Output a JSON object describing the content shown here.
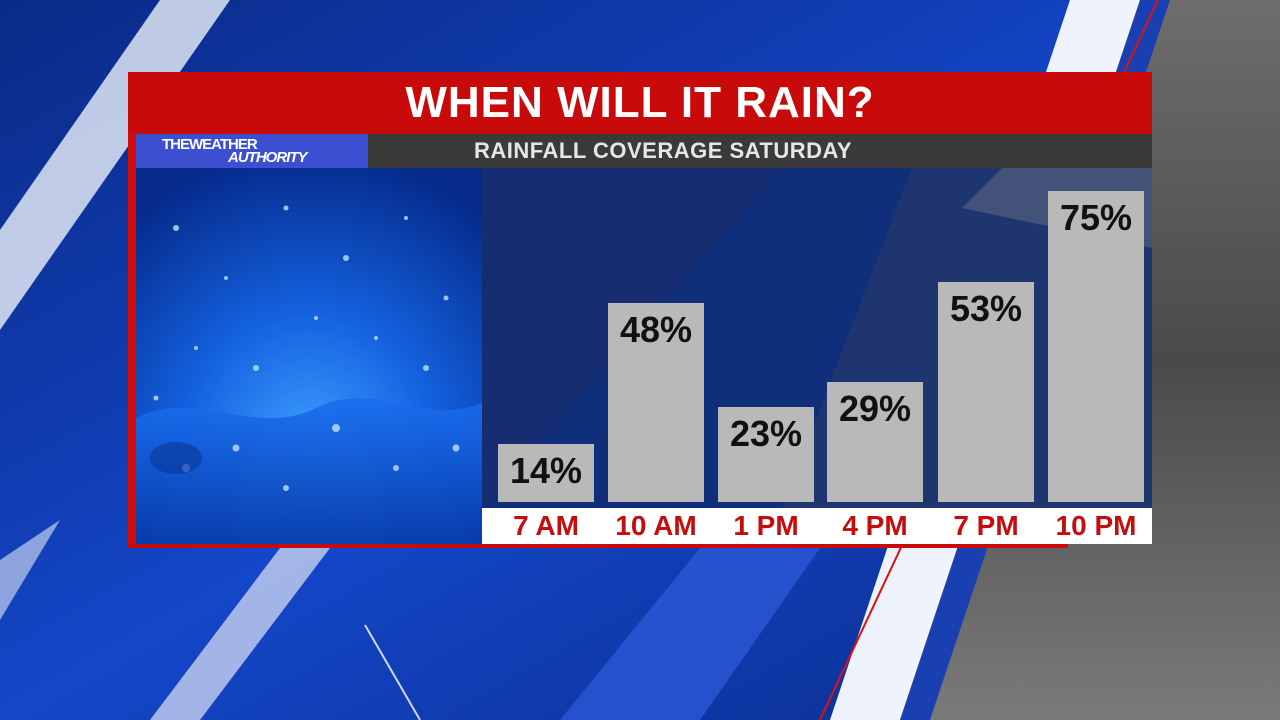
{
  "header": {
    "title": "WHEN WILL IT RAIN?",
    "subtitle": "RAINFALL COVERAGE SATURDAY"
  },
  "logo": {
    "line1": "THEWEATHER",
    "line2": "AUTHORITY"
  },
  "colors": {
    "accent_red": "#c90a0a",
    "bar_gray": "#b9b9b9",
    "label_red": "#c40d0d",
    "logo_blue": "#3b4fd0"
  },
  "chart_data": {
    "type": "bar",
    "title": "WHEN WILL IT RAIN?",
    "subtitle": "RAINFALL COVERAGE SATURDAY",
    "categories": [
      "7 AM",
      "10 AM",
      "1 PM",
      "4 PM",
      "7 PM",
      "10 PM"
    ],
    "values": [
      14,
      48,
      23,
      29,
      53,
      75
    ],
    "value_labels": [
      "14%",
      "48%",
      "23%",
      "29%",
      "53%",
      "75%"
    ],
    "unit": "%",
    "ylim": [
      0,
      80
    ],
    "grid": false,
    "legend": "none"
  }
}
